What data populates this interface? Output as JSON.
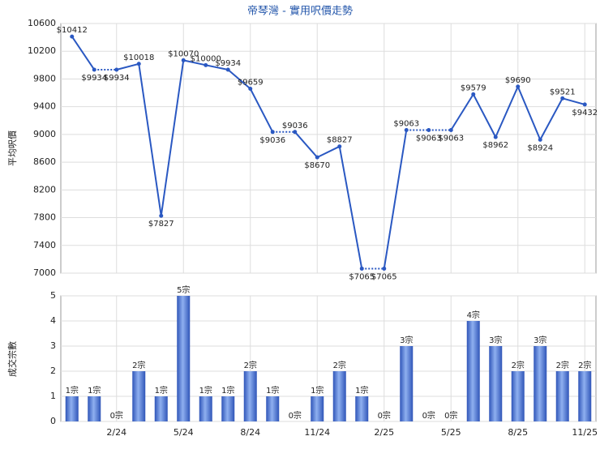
{
  "chart_data": [
    {
      "type": "line",
      "title": "帝琴灣 - 實用呎價走勢",
      "y_label": "平均呎價",
      "color": "#2a58c2",
      "grid": true,
      "ylim": [
        7000,
        10600
      ],
      "yticks": [
        7000,
        7400,
        7800,
        8200,
        8600,
        9000,
        9400,
        9800,
        10200,
        10600
      ],
      "values": [
        10412,
        9934,
        9934,
        10018,
        7827,
        10070,
        10000,
        9934,
        9659,
        9036,
        9036,
        8670,
        8827,
        7065,
        7065,
        9063,
        9063,
        9063,
        9579,
        8962,
        9690,
        8924,
        9521,
        9432
      ],
      "value_labels": [
        "$10412",
        "$9934",
        "$9934",
        "$10018",
        "$7827",
        "$10070",
        "$10000",
        "$9934",
        "$9659",
        "$9036",
        "$9036",
        "$8670",
        "$8827",
        "$7065",
        "$7065",
        "$9063",
        "$9063",
        "$9063",
        "$9579",
        "$8962",
        "$9690",
        "$8924",
        "$9521",
        "$9432"
      ]
    },
    {
      "type": "bar",
      "y_label": "成交宗數",
      "color": "#3a62c8",
      "grid": true,
      "categories": [
        null,
        null,
        "2/24",
        null,
        null,
        "5/24",
        null,
        null,
        "8/24",
        null,
        null,
        "11/24",
        null,
        null,
        "2/25",
        null,
        null,
        "5/25",
        null,
        null,
        "8/25",
        null,
        null,
        "11/25"
      ],
      "ylim": [
        0,
        5
      ],
      "yticks": [
        0,
        1,
        2,
        3,
        4,
        5
      ],
      "values": [
        1,
        1,
        0,
        2,
        1,
        5,
        1,
        1,
        2,
        1,
        0,
        1,
        2,
        1,
        0,
        3,
        0,
        0,
        4,
        3,
        2,
        3,
        2,
        2
      ],
      "value_labels": [
        "1宗",
        "1宗",
        "0宗",
        "2宗",
        "1宗",
        "5宗",
        "1宗",
        "1宗",
        "2宗",
        "1宗",
        "0宗",
        "1宗",
        "2宗",
        "1宗",
        "0宗",
        "3宗",
        "0宗",
        "0宗",
        "4宗",
        "3宗",
        "2宗",
        "3宗",
        "2宗",
        "2宗"
      ]
    }
  ]
}
